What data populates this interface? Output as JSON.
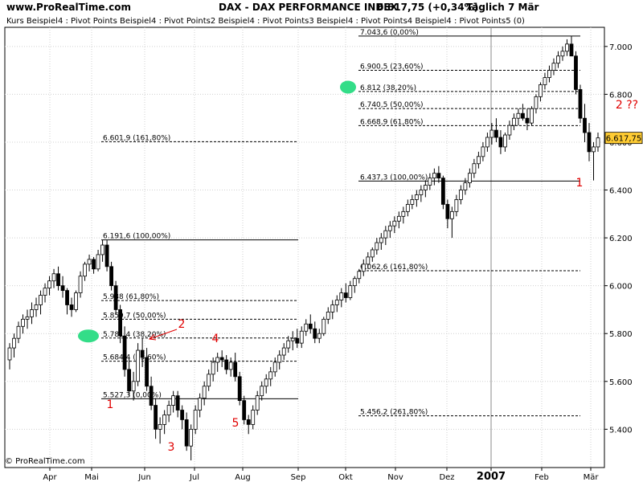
{
  "header": {
    "site": "www.ProRealTime.com",
    "title": "DAX - DAX PERFORMANCE INDEX",
    "quote": "6.617,75 (+0,34%)",
    "period": "Täglich  7 Mär"
  },
  "legend_text": "Kurs    Beispiel4 : Pivot Points Beispiel4 : Pivot Points2 Beispiel4 : Pivot Points3 Beispiel4 : Pivot Points4 Beispiel4 : Pivot Points5 (0)",
  "copyright": "© ProRealTime.com",
  "colors": {
    "candle_up": "#ffffff",
    "candle_down": "#000000",
    "wave_label": "#e00000",
    "highlight": "#33dd88",
    "price_badge": "#ffcc33"
  },
  "chart_data": {
    "type": "candlestick",
    "x_axis": {
      "labels": [
        "Apr",
        "Mai",
        "Jun",
        "Jul",
        "Aug",
        "Sep",
        "Okt",
        "Nov",
        "Dez",
        "2007",
        "Feb",
        "Mär"
      ],
      "bold": [
        "2007"
      ]
    },
    "y_axis": {
      "ticks": [
        5400,
        5600,
        5800,
        6000,
        6200,
        6400,
        6600,
        6800,
        7000
      ],
      "tick_labels": [
        "5.400",
        "5.600",
        "5.800",
        "6.000",
        "6.200",
        "6.400",
        "6.600",
        "6.800",
        "7.000"
      ],
      "range": [
        5240,
        7080
      ],
      "side": "right"
    },
    "last_price_label": "6.617,75",
    "last_price": 6617.75,
    "series_ohlc": [
      [
        5690,
        5760,
        5650,
        5740
      ],
      [
        5740,
        5800,
        5700,
        5780
      ],
      [
        5780,
        5850,
        5760,
        5830
      ],
      [
        5830,
        5880,
        5800,
        5860
      ],
      [
        5860,
        5900,
        5820,
        5870
      ],
      [
        5870,
        5930,
        5840,
        5900
      ],
      [
        5900,
        5950,
        5870,
        5920
      ],
      [
        5920,
        5980,
        5880,
        5960
      ],
      [
        5960,
        6010,
        5930,
        5990
      ],
      [
        5990,
        6040,
        5960,
        6020
      ],
      [
        6020,
        6070,
        5990,
        6050
      ],
      [
        6050,
        6080,
        5980,
        6000
      ],
      [
        6000,
        6040,
        5950,
        5980
      ],
      [
        5980,
        5990,
        5880,
        5920
      ],
      [
        5920,
        5950,
        5870,
        5900
      ],
      [
        5900,
        5980,
        5890,
        5970
      ],
      [
        5970,
        6060,
        5950,
        6040
      ],
      [
        6040,
        6100,
        6020,
        6090
      ],
      [
        6090,
        6130,
        6060,
        6110
      ],
      [
        6110,
        6120,
        6050,
        6070
      ],
      [
        6070,
        6150,
        6060,
        6130
      ],
      [
        6130,
        6191.6,
        6100,
        6170
      ],
      [
        6170,
        6190,
        6060,
        6080
      ],
      [
        6080,
        6100,
        5980,
        6000
      ],
      [
        6000,
        6020,
        5880,
        5900
      ],
      [
        5900,
        5920,
        5760,
        5790
      ],
      [
        5790,
        5830,
        5620,
        5650
      ],
      [
        5650,
        5700,
        5540,
        5560
      ],
      [
        5560,
        5640,
        5520,
        5600
      ],
      [
        5600,
        5760,
        5580,
        5730
      ],
      [
        5730,
        5780,
        5660,
        5700
      ],
      [
        5700,
        5740,
        5560,
        5580
      ],
      [
        5580,
        5620,
        5480,
        5500
      ],
      [
        5500,
        5530,
        5360,
        5400
      ],
      [
        5400,
        5450,
        5340,
        5420
      ],
      [
        5420,
        5480,
        5380,
        5460
      ],
      [
        5460,
        5520,
        5430,
        5500
      ],
      [
        5500,
        5560,
        5470,
        5540
      ],
      [
        5540,
        5560,
        5450,
        5480
      ],
      [
        5480,
        5500,
        5400,
        5440
      ],
      [
        5440,
        5470,
        5310,
        5330
      ],
      [
        5330,
        5420,
        5270,
        5400
      ],
      [
        5400,
        5500,
        5380,
        5480
      ],
      [
        5480,
        5550,
        5450,
        5530
      ],
      [
        5530,
        5600,
        5500,
        5580
      ],
      [
        5580,
        5650,
        5560,
        5630
      ],
      [
        5630,
        5700,
        5600,
        5680
      ],
      [
        5680,
        5720,
        5640,
        5700
      ],
      [
        5700,
        5730,
        5660,
        5690
      ],
      [
        5690,
        5710,
        5630,
        5650
      ],
      [
        5650,
        5700,
        5620,
        5680
      ],
      [
        5680,
        5720,
        5600,
        5620
      ],
      [
        5620,
        5640,
        5500,
        5520
      ],
      [
        5520,
        5540,
        5420,
        5440
      ],
      [
        5440,
        5460,
        5380,
        5420
      ],
      [
        5420,
        5500,
        5400,
        5480
      ],
      [
        5480,
        5560,
        5460,
        5540
      ],
      [
        5540,
        5600,
        5520,
        5580
      ],
      [
        5580,
        5630,
        5550,
        5610
      ],
      [
        5610,
        5660,
        5580,
        5640
      ],
      [
        5640,
        5700,
        5620,
        5680
      ],
      [
        5680,
        5730,
        5650,
        5710
      ],
      [
        5710,
        5760,
        5690,
        5740
      ],
      [
        5740,
        5790,
        5720,
        5770
      ],
      [
        5770,
        5810,
        5730,
        5780
      ],
      [
        5780,
        5820,
        5740,
        5760
      ],
      [
        5760,
        5830,
        5740,
        5810
      ],
      [
        5810,
        5860,
        5790,
        5840
      ],
      [
        5840,
        5880,
        5800,
        5820
      ],
      [
        5820,
        5850,
        5760,
        5780
      ],
      [
        5780,
        5820,
        5760,
        5800
      ],
      [
        5800,
        5870,
        5790,
        5860
      ],
      [
        5860,
        5910,
        5840,
        5890
      ],
      [
        5890,
        5940,
        5860,
        5920
      ],
      [
        5920,
        5960,
        5890,
        5940
      ],
      [
        5940,
        5990,
        5910,
        5970
      ],
      [
        5970,
        6010,
        5930,
        5950
      ],
      [
        5950,
        6020,
        5940,
        6000
      ],
      [
        6000,
        6040,
        5970,
        6030
      ],
      [
        6030,
        6070,
        6010,
        6060
      ],
      [
        6060,
        6110,
        6040,
        6090
      ],
      [
        6090,
        6140,
        6070,
        6120
      ],
      [
        6120,
        6160,
        6100,
        6150
      ],
      [
        6150,
        6200,
        6130,
        6180
      ],
      [
        6180,
        6220,
        6150,
        6200
      ],
      [
        6200,
        6250,
        6170,
        6230
      ],
      [
        6230,
        6270,
        6200,
        6250
      ],
      [
        6250,
        6290,
        6220,
        6270
      ],
      [
        6270,
        6310,
        6240,
        6290
      ],
      [
        6290,
        6330,
        6260,
        6310
      ],
      [
        6310,
        6360,
        6290,
        6340
      ],
      [
        6340,
        6380,
        6320,
        6360
      ],
      [
        6360,
        6400,
        6330,
        6380
      ],
      [
        6380,
        6420,
        6350,
        6400
      ],
      [
        6400,
        6440,
        6370,
        6420
      ],
      [
        6420,
        6470,
        6400,
        6450
      ],
      [
        6450,
        6490,
        6420,
        6470
      ],
      [
        6470,
        6500,
        6430,
        6450
      ],
      [
        6450,
        6460,
        6320,
        6340
      ],
      [
        6340,
        6360,
        6240,
        6280
      ],
      [
        6280,
        6330,
        6200,
        6310
      ],
      [
        6310,
        6380,
        6290,
        6360
      ],
      [
        6360,
        6420,
        6340,
        6400
      ],
      [
        6400,
        6450,
        6380,
        6430
      ],
      [
        6430,
        6490,
        6410,
        6470
      ],
      [
        6470,
        6530,
        6450,
        6510
      ],
      [
        6510,
        6560,
        6490,
        6540
      ],
      [
        6540,
        6600,
        6520,
        6580
      ],
      [
        6580,
        6640,
        6560,
        6620
      ],
      [
        6620,
        6680,
        6590,
        6650
      ],
      [
        6650,
        6700,
        6600,
        6620
      ],
      [
        6620,
        6650,
        6550,
        6580
      ],
      [
        6580,
        6640,
        6560,
        6630
      ],
      [
        6630,
        6690,
        6610,
        6670
      ],
      [
        6670,
        6720,
        6650,
        6700
      ],
      [
        6700,
        6740,
        6670,
        6720
      ],
      [
        6720,
        6760,
        6690,
        6700
      ],
      [
        6700,
        6740,
        6650,
        6680
      ],
      [
        6680,
        6750,
        6670,
        6740
      ],
      [
        6740,
        6800,
        6720,
        6790
      ],
      [
        6790,
        6850,
        6770,
        6840
      ],
      [
        6840,
        6890,
        6820,
        6870
      ],
      [
        6870,
        6920,
        6850,
        6900
      ],
      [
        6900,
        6950,
        6880,
        6930
      ],
      [
        6930,
        6980,
        6910,
        6960
      ],
      [
        6960,
        7000,
        6940,
        6980
      ],
      [
        6980,
        7030,
        6960,
        7010
      ],
      [
        7010,
        7043.6,
        6990,
        6960
      ],
      [
        6960,
        6980,
        6800,
        6820
      ],
      [
        6820,
        6840,
        6680,
        6700
      ],
      [
        6700,
        6760,
        6600,
        6640
      ],
      [
        6640,
        6680,
        6520,
        6560
      ],
      [
        6560,
        6600,
        6440,
        6580
      ],
      [
        6580,
        6640,
        6560,
        6617.75
      ]
    ],
    "fib_levels": [
      {
        "label": "6.601,9 (161,80%)",
        "value": 6601.9,
        "dashed": true,
        "span": "left"
      },
      {
        "label": "6.191,6 (100,00%)",
        "value": 6191.6,
        "dashed": false,
        "span": "left"
      },
      {
        "label": "5.938 (61,80%)",
        "value": 5938,
        "dashed": true,
        "span": "left"
      },
      {
        "label": "5.859,7 (50,00%)",
        "value": 5859.7,
        "dashed": true,
        "span": "left"
      },
      {
        "label": "5.781,4 (38,20%)",
        "value": 5781.4,
        "dashed": true,
        "span": "left"
      },
      {
        "label": "5.684,4 (23,60%)",
        "value": 5684.4,
        "dashed": true,
        "span": "left"
      },
      {
        "label": "5.527,3 (0,00%)",
        "value": 5527.3,
        "dashed": false,
        "span": "left"
      },
      {
        "label": "7.043,6 (0,00%)",
        "value": 7043.6,
        "dashed": false,
        "span": "right"
      },
      {
        "label": "6.900,5 (23,60%)",
        "value": 6900.5,
        "dashed": true,
        "span": "right"
      },
      {
        "label": "6.812 (38,20%)",
        "value": 6812,
        "dashed": true,
        "span": "right"
      },
      {
        "label": "6.740,5 (50,00%)",
        "value": 6740.5,
        "dashed": true,
        "span": "right"
      },
      {
        "label": "6.668,9 (61,80%)",
        "value": 6668.9,
        "dashed": true,
        "span": "right"
      },
      {
        "label": "6.437,3 (100,00%)",
        "value": 6437.3,
        "dashed": false,
        "span": "right"
      },
      {
        "label": "6.062,6 (161,80%)",
        "value": 6062.6,
        "dashed": true,
        "span": "right"
      },
      {
        "label": "5.456,2 (261,80%)",
        "value": 5456.2,
        "dashed": true,
        "span": "right"
      }
    ],
    "wave_labels": [
      "1",
      "2",
      "3",
      "4",
      "5",
      "2 ??",
      "1"
    ],
    "grid": true
  }
}
